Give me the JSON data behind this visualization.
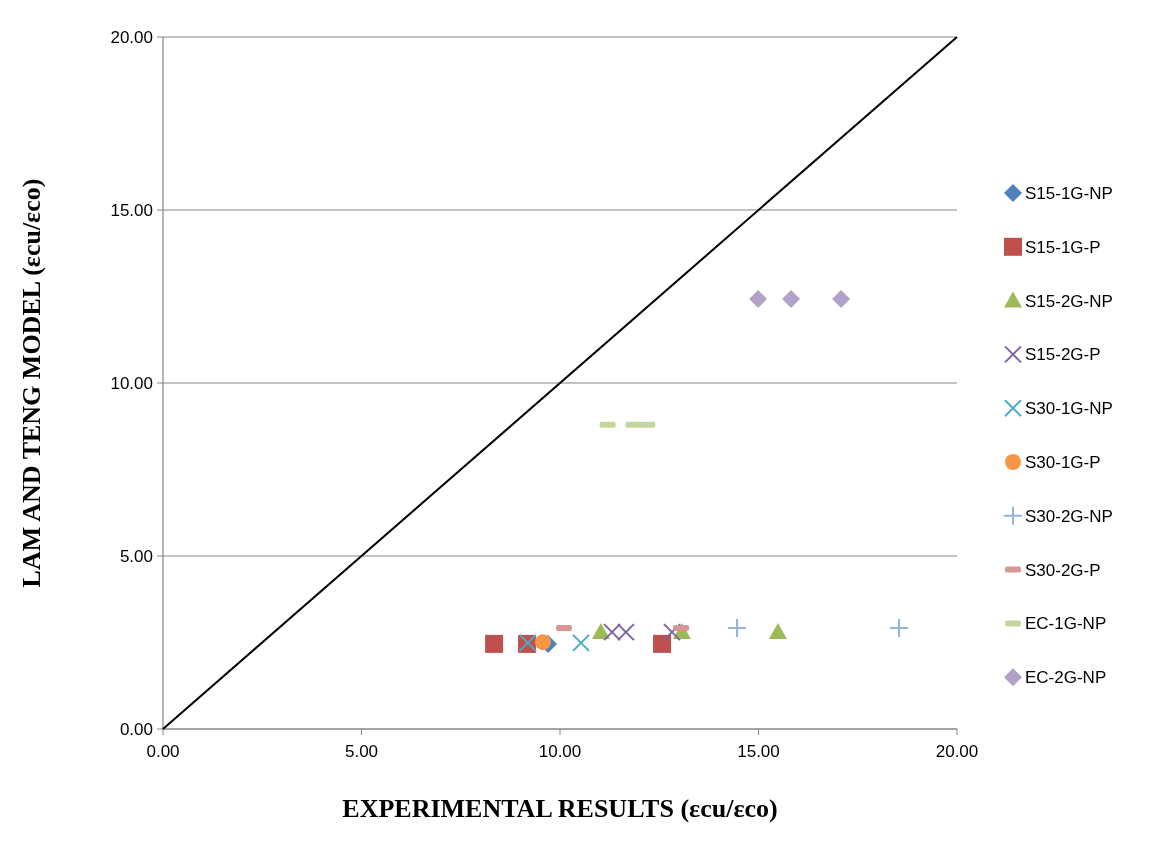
{
  "chart_data": {
    "type": "scatter",
    "xlabel": "EXPERIMENTAL RESULTS  (εcu/εco)",
    "ylabel": "LAM AND TENG MODEL (εcu/εco)",
    "xlim": [
      0,
      20
    ],
    "ylim": [
      0,
      20
    ],
    "xticks": [
      {
        "value": 0,
        "label": "0.00"
      },
      {
        "value": 5,
        "label": "5.00"
      },
      {
        "value": 10,
        "label": "10.00"
      },
      {
        "value": 15,
        "label": "15.00"
      },
      {
        "value": 20,
        "label": "20.00"
      }
    ],
    "yticks": [
      {
        "value": 0,
        "label": "0.00"
      },
      {
        "value": 5,
        "label": "5.00"
      },
      {
        "value": 10,
        "label": "10.00"
      },
      {
        "value": 15,
        "label": "15.00"
      },
      {
        "value": 20,
        "label": "20.00"
      }
    ],
    "grid": "y",
    "legend": "right",
    "series": [
      {
        "type": "line",
        "color": "#000000",
        "marker": "none",
        "x": [
          0,
          20
        ],
        "values": [
          0,
          20
        ]
      },
      {
        "name": "S15-1G-NP",
        "color": "#4f81bd",
        "marker": "diamond",
        "x": [
          9.7
        ],
        "values": [
          2.46
        ]
      },
      {
        "name": "S15-1G-P",
        "color": "#c0504d",
        "marker": "square",
        "x": [
          8.34,
          9.17,
          12.57
        ],
        "values": [
          2.46,
          2.46,
          2.46
        ]
      },
      {
        "name": "S15-2G-NP",
        "color": "#9bbb59",
        "marker": "triangle",
        "x": [
          11.03,
          13.07,
          15.49
        ],
        "values": [
          2.8,
          2.8,
          2.8
        ]
      },
      {
        "name": "S15-2G-P",
        "color": "#8064a2",
        "marker": "cross",
        "x": [
          11.31,
          11.66,
          12.82
        ],
        "values": [
          2.8,
          2.8,
          2.8
        ]
      },
      {
        "name": "S30-1G-NP",
        "color": "#4bacc6",
        "marker": "cross",
        "x": [
          9.19,
          10.53
        ],
        "values": [
          2.49,
          2.49
        ]
      },
      {
        "name": "S30-1G-P",
        "color": "#f79646",
        "marker": "circle",
        "x": [
          9.57
        ],
        "values": [
          2.51
        ]
      },
      {
        "name": "S30-2G-NP",
        "color": "#95b3d7",
        "marker": "plus",
        "x": [
          14.46,
          18.54
        ],
        "values": [
          2.92,
          2.92
        ]
      },
      {
        "name": "S30-2G-P",
        "color": "#d99694",
        "x": [
          10.1,
          13.05
        ],
        "values": [
          2.92,
          2.92
        ]
      },
      {
        "name": "EC-1G-NP",
        "color": "#c3d69b",
        "x": [
          11.2,
          11.85,
          12.2
        ],
        "values": [
          8.79,
          8.79,
          8.79
        ]
      },
      {
        "name": "EC-2G-NP",
        "color": "#b2a2c7",
        "marker": "diamond",
        "x": [
          14.99,
          15.82,
          17.08
        ],
        "values": [
          12.43,
          12.43,
          12.43
        ]
      }
    ]
  }
}
